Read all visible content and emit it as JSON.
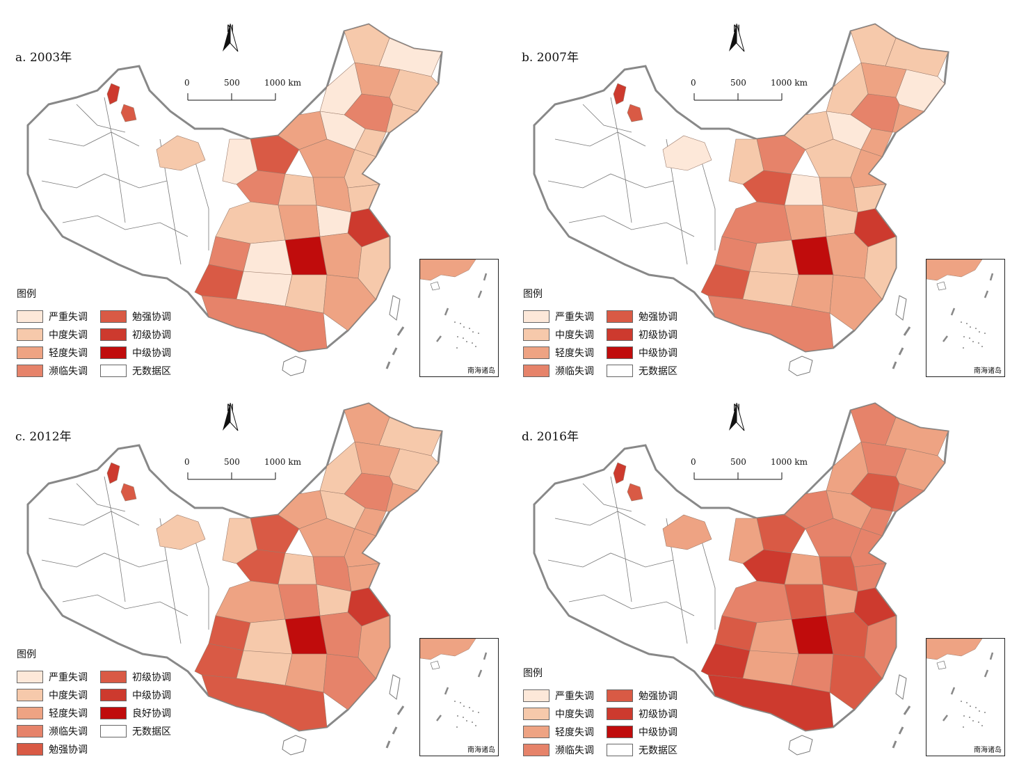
{
  "colors": {
    "c1": "#fde8d9",
    "c2": "#f6c9ab",
    "c3": "#eea383",
    "c4": "#e6836a",
    "c5": "#d95a45",
    "c6": "#cd3a2e",
    "c7": "#c00c0c",
    "none": "#ffffff"
  },
  "map_common": {
    "north_label": "N",
    "scale": {
      "labels": [
        "0",
        "500",
        "1000 km"
      ]
    },
    "legend_title": "图例",
    "inset_label": "南海诸岛"
  },
  "panels": [
    {
      "title": "a. 2003年",
      "legend": [
        {
          "label": "严重失调",
          "color": "c1"
        },
        {
          "label": "中度失调",
          "color": "c2"
        },
        {
          "label": "轻度失调",
          "color": "c3"
        },
        {
          "label": "濒临失调",
          "color": "c4"
        },
        {
          "label": "勉强协调",
          "color": "c5"
        },
        {
          "label": "初级协调",
          "color": "c6"
        },
        {
          "label": "中级协调",
          "color": "c7"
        },
        {
          "label": "无数据区",
          "color": "none"
        }
      ],
      "levels": [
        2,
        1,
        3,
        2,
        1,
        4,
        2,
        3,
        1,
        2,
        5,
        3,
        2,
        1,
        4,
        2,
        3,
        2,
        6,
        1,
        3,
        2,
        4,
        1,
        7,
        3,
        2,
        5,
        1,
        2,
        3,
        4
      ]
    },
    {
      "title": "b. 2007年",
      "legend": [
        {
          "label": "严重失调",
          "color": "c1"
        },
        {
          "label": "中度失调",
          "color": "c2"
        },
        {
          "label": "轻度失调",
          "color": "c3"
        },
        {
          "label": "濒临失调",
          "color": "c4"
        },
        {
          "label": "勉强协调",
          "color": "c5"
        },
        {
          "label": "初级协调",
          "color": "c6"
        },
        {
          "label": "中级协调",
          "color": "c7"
        },
        {
          "label": "无数据区",
          "color": "none"
        }
      ],
      "levels": [
        2,
        2,
        3,
        1,
        2,
        4,
        3,
        2,
        1,
        3,
        4,
        2,
        3,
        2,
        5,
        1,
        3,
        2,
        6,
        2,
        3,
        4,
        4,
        2,
        7,
        3,
        2,
        5,
        2,
        3,
        3,
        4
      ]
    },
    {
      "title": "c. 2012年",
      "legend": [
        {
          "label": "严重失调",
          "color": "c1"
        },
        {
          "label": "中度失调",
          "color": "c2"
        },
        {
          "label": "轻度失调",
          "color": "c3"
        },
        {
          "label": "濒临失调",
          "color": "c4"
        },
        {
          "label": "勉强协调",
          "color": "c5"
        },
        {
          "label": "初级协调",
          "color": "c5"
        },
        {
          "label": "中级协调",
          "color": "c6"
        },
        {
          "label": "良好协调",
          "color": "c7"
        },
        {
          "label": "无数据区",
          "color": "none"
        }
      ],
      "levels": [
        3,
        2,
        3,
        2,
        2,
        4,
        3,
        3,
        2,
        3,
        5,
        3,
        3,
        2,
        5,
        2,
        4,
        3,
        6,
        2,
        4,
        3,
        5,
        2,
        7,
        4,
        3,
        5,
        2,
        3,
        4,
        5
      ]
    },
    {
      "title": "d. 2016年",
      "legend": [
        {
          "label": "严重失调",
          "color": "c1"
        },
        {
          "label": "中度失调",
          "color": "c2"
        },
        {
          "label": "轻度失调",
          "color": "c3"
        },
        {
          "label": "濒临失调",
          "color": "c4"
        },
        {
          "label": "勉强协调",
          "color": "c5"
        },
        {
          "label": "初级协调",
          "color": "c6"
        },
        {
          "label": "中级协调",
          "color": "c7"
        },
        {
          "label": "无数据区",
          "color": "none"
        }
      ],
      "levels": [
        4,
        3,
        4,
        3,
        3,
        5,
        4,
        4,
        3,
        4,
        5,
        4,
        4,
        3,
        6,
        3,
        5,
        4,
        6,
        3,
        5,
        4,
        5,
        3,
        7,
        5,
        4,
        6,
        3,
        4,
        5,
        6
      ]
    }
  ]
}
